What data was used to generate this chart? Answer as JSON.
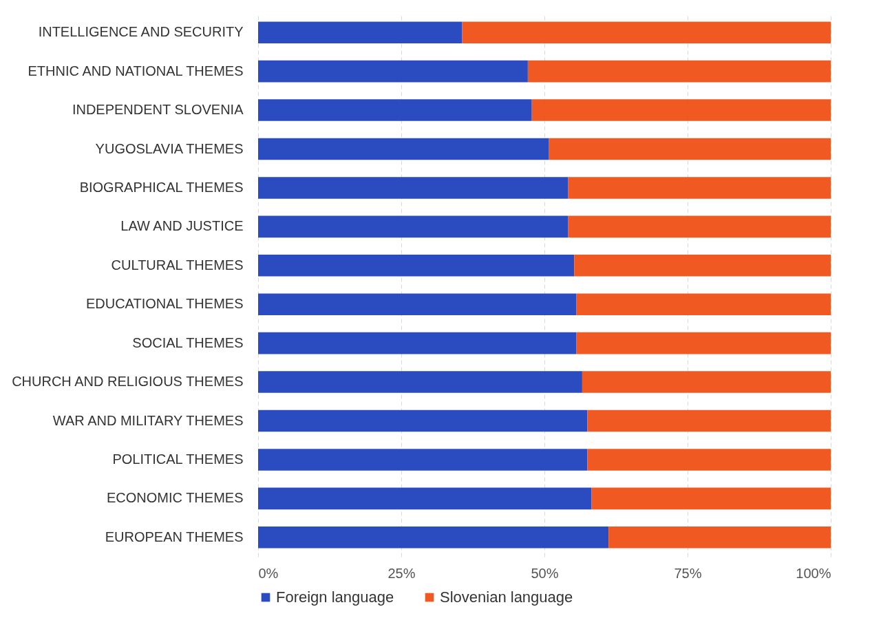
{
  "chart_data": {
    "type": "bar",
    "orientation": "horizontal",
    "stacked": true,
    "categories": [
      "INTELLIGENCE AND SECURITY",
      "ETHNIC AND NATIONAL THEMES",
      "INDEPENDENT SLOVENIA",
      "YUGOSLAVIA THEMES",
      "BIOGRAPHICAL THEMES",
      "LAW AND JUSTICE",
      "CULTURAL THEMES",
      "EDUCATIONAL THEMES",
      "SOCIAL THEMES",
      "CHURCH AND RELIGIOUS THEMES",
      "WAR AND MILITARY THEMES",
      "POLITICAL THEMES",
      "ECONOMIC THEMES",
      "EUROPEAN THEMES"
    ],
    "series": [
      {
        "name": "Foreign language",
        "color": "#2b4cc0",
        "values": [
          35.6,
          47.1,
          47.8,
          50.8,
          54.1,
          54.1,
          55.2,
          55.6,
          55.6,
          56.6,
          57.5,
          57.5,
          58.2,
          61.2
        ]
      },
      {
        "name": "Slovenian language",
        "color": "#f05a22",
        "values": [
          64.4,
          52.9,
          52.2,
          49.2,
          45.9,
          45.9,
          44.8,
          44.4,
          44.4,
          43.4,
          42.5,
          42.5,
          41.8,
          38.8
        ]
      }
    ],
    "xlim": [
      0,
      100
    ],
    "xticks": [
      {
        "value": 0,
        "label": "0%"
      },
      {
        "value": 25,
        "label": "25%"
      },
      {
        "value": 50,
        "label": "50%"
      },
      {
        "value": 75,
        "label": "75%"
      },
      {
        "value": 100,
        "label": "100%"
      }
    ],
    "grid": "x",
    "legend": "bottom"
  }
}
